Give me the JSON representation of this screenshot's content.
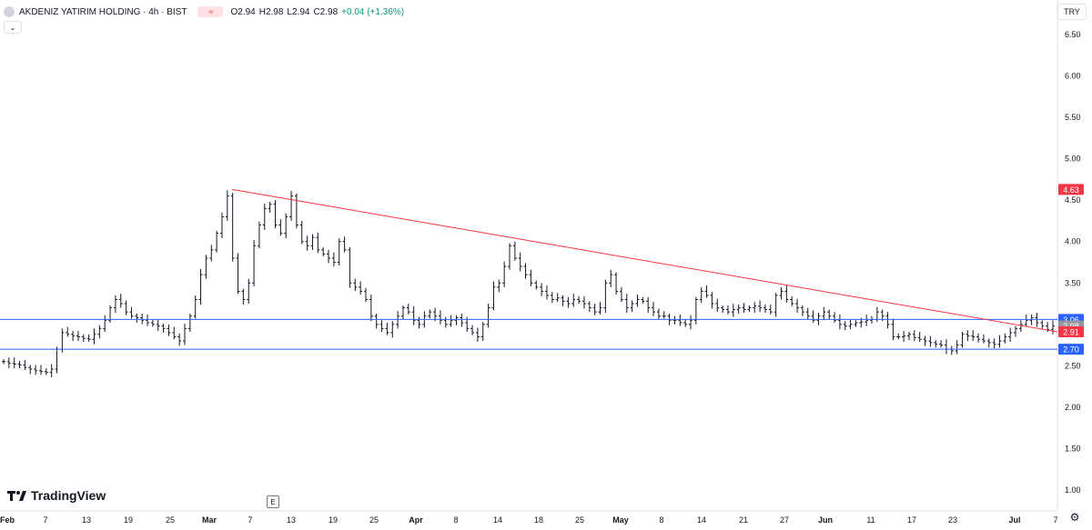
{
  "header": {
    "title": "AKDENIZ YATIRIM HOLDING · 4h · BIST",
    "eq_icon": "≈",
    "ohlc": {
      "open": "O2.94",
      "high": "H2.98",
      "low": "L2.94",
      "close": "C2.98",
      "change": "+0.04 (+1.36%)"
    }
  },
  "currency": "TRY",
  "logo_text": "TradingView",
  "e_label": "E",
  "colors": {
    "candle": "#131722",
    "trendline": "#f23645",
    "hline": "#2962ff",
    "last_price_tag": "#9598a1",
    "red_tag": "#f23645",
    "blue_tag": "#2962ff"
  },
  "chart_data": {
    "type": "ohlc",
    "ylim": [
      1.0,
      6.75
    ],
    "y_ticks": [
      "6.50",
      "6.00",
      "5.50",
      "5.00",
      "4.50",
      "4.00",
      "3.50",
      "3.00",
      "2.50",
      "2.00",
      "1.50",
      "1.00"
    ],
    "x_ticks": [
      "Feb",
      "7",
      "13",
      "19",
      "25",
      "Mar",
      "7",
      "13",
      "19",
      "25",
      "Apr",
      "8",
      "14",
      "18",
      "25",
      "May",
      "8",
      "14",
      "21",
      "27",
      "Jun",
      "11",
      "17",
      "23",
      "Jul",
      "7"
    ],
    "price_tags": [
      {
        "label": "4.63",
        "value": 4.63,
        "color": "red"
      },
      {
        "label": "3.06",
        "value": 3.06,
        "color": "blue"
      },
      {
        "label": "2.98",
        "value": 2.98,
        "color": "gray"
      },
      {
        "label": "2.91",
        "value": 2.91,
        "color": "red"
      },
      {
        "label": "2.70",
        "value": 2.7,
        "color": "blue"
      }
    ],
    "horizontal_lines": [
      3.06,
      2.7
    ],
    "trendline": {
      "start": {
        "x": "Mar 4",
        "y": 4.63
      },
      "end": {
        "x": "Jul 8",
        "y": 2.91
      }
    },
    "closes": [
      2.55,
      2.53,
      2.52,
      2.51,
      2.48,
      2.46,
      2.44,
      2.43,
      2.42,
      2.46,
      2.7,
      2.9,
      2.88,
      2.86,
      2.85,
      2.83,
      2.82,
      2.88,
      2.95,
      3.05,
      3.2,
      3.3,
      3.25,
      3.15,
      3.1,
      3.08,
      3.05,
      3.02,
      3.0,
      2.98,
      2.95,
      2.9,
      2.85,
      2.8,
      2.95,
      3.1,
      3.3,
      3.6,
      3.8,
      3.9,
      4.1,
      4.3,
      4.55,
      3.8,
      3.4,
      3.3,
      3.5,
      3.95,
      4.2,
      4.4,
      4.45,
      4.2,
      4.1,
      4.3,
      4.55,
      4.2,
      4.0,
      3.95,
      4.05,
      3.9,
      3.85,
      3.8,
      3.75,
      4.0,
      3.9,
      3.5,
      3.45,
      3.4,
      3.3,
      3.1,
      3.0,
      2.95,
      2.9,
      3.0,
      3.1,
      3.2,
      3.15,
      3.05,
      3.0,
      3.1,
      3.15,
      3.1,
      3.05,
      3.0,
      3.05,
      3.08,
      3.02,
      2.95,
      2.9,
      2.85,
      3.0,
      3.2,
      3.45,
      3.5,
      3.7,
      3.95,
      3.8,
      3.7,
      3.6,
      3.5,
      3.45,
      3.4,
      3.35,
      3.3,
      3.32,
      3.28,
      3.25,
      3.3,
      3.28,
      3.25,
      3.2,
      3.15,
      3.2,
      3.5,
      3.6,
      3.4,
      3.3,
      3.2,
      3.25,
      3.3,
      3.28,
      3.2,
      3.15,
      3.1,
      3.1,
      3.05,
      3.05,
      3.02,
      3.0,
      3.05,
      3.3,
      3.4,
      3.35,
      3.25,
      3.2,
      3.18,
      3.15,
      3.18,
      3.2,
      3.18,
      3.2,
      3.22,
      3.2,
      3.18,
      3.15,
      3.35,
      3.4,
      3.3,
      3.25,
      3.2,
      3.15,
      3.1,
      3.05,
      3.1,
      3.15,
      3.1,
      3.05,
      3.0,
      2.98,
      3.0,
      3.02,
      3.03,
      3.05,
      3.06,
      3.15,
      3.1,
      3.0,
      2.85,
      2.85,
      2.86,
      2.88,
      2.84,
      2.82,
      2.8,
      2.78,
      2.76,
      2.75,
      2.7,
      2.68,
      2.75,
      2.88,
      2.86,
      2.85,
      2.82,
      2.8,
      2.78,
      2.76,
      2.8,
      2.85,
      2.9,
      2.95,
      3.0,
      3.05,
      3.08,
      3.02,
      2.98,
      2.94,
      2.98
    ]
  }
}
